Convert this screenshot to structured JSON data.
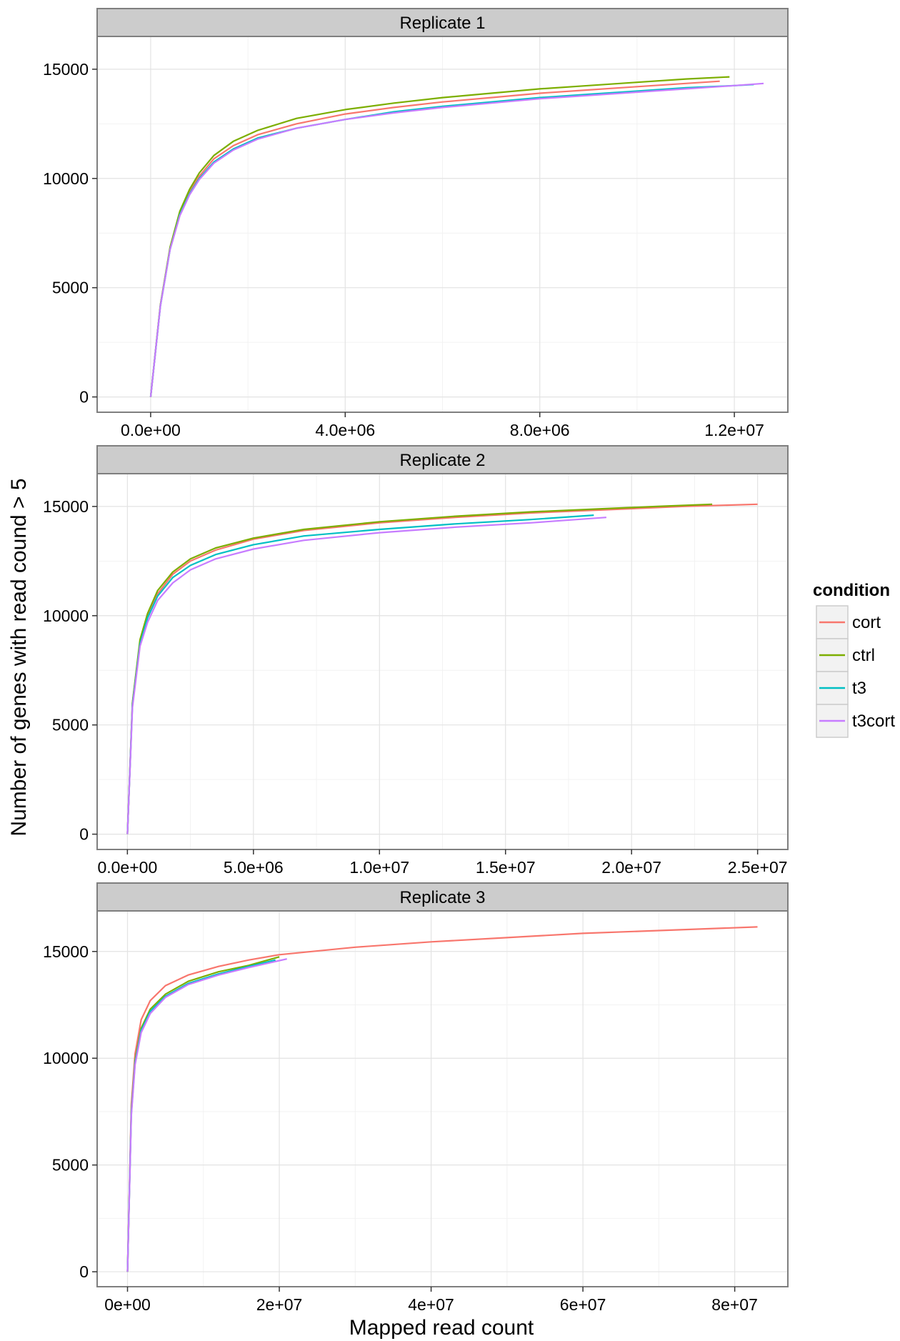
{
  "figure": {
    "xlabel": "Mapped read count",
    "ylabel": "Number of genes with read cound > 5"
  },
  "legend": {
    "title": "condition",
    "items": [
      {
        "label": "cort",
        "color": "#F8766D"
      },
      {
        "label": "ctrl",
        "color": "#7CAE00"
      },
      {
        "label": "t3",
        "color": "#00BFC4"
      },
      {
        "label": "t3cort",
        "color": "#C77CFF"
      }
    ]
  },
  "chart_data": [
    {
      "type": "line",
      "title": "Replicate 1",
      "xlim": [
        -1100000,
        13100000
      ],
      "ylim": [
        -700,
        16500
      ],
      "x_ticks": [
        0,
        4000000,
        8000000,
        12000000
      ],
      "x_tick_labels": [
        "0.0e+00",
        "4.0e+06",
        "8.0e+06",
        "1.2e+07"
      ],
      "y_ticks": [
        0,
        5000,
        10000,
        15000
      ],
      "y_tick_labels": [
        "0",
        "5000",
        "10000",
        "15000"
      ],
      "grid": true,
      "series": [
        {
          "name": "cort",
          "color": "#F8766D",
          "points": [
            [
              0,
              0
            ],
            [
              200000,
              4200
            ],
            [
              400000,
              6800
            ],
            [
              600000,
              8400
            ],
            [
              800000,
              9400
            ],
            [
              1000000,
              10100
            ],
            [
              1300000,
              10900
            ],
            [
              1700000,
              11500
            ],
            [
              2200000,
              12000
            ],
            [
              3000000,
              12500
            ],
            [
              4000000,
              12950
            ],
            [
              5000000,
              13250
            ],
            [
              6000000,
              13500
            ],
            [
              7000000,
              13700
            ],
            [
              8000000,
              13900
            ],
            [
              9000000,
              14050
            ],
            [
              10000000,
              14200
            ],
            [
              11000000,
              14350
            ],
            [
              11700000,
              14450
            ]
          ]
        },
        {
          "name": "ctrl",
          "color": "#7CAE00",
          "points": [
            [
              0,
              0
            ],
            [
              200000,
              4200
            ],
            [
              400000,
              6850
            ],
            [
              600000,
              8500
            ],
            [
              800000,
              9500
            ],
            [
              1000000,
              10250
            ],
            [
              1300000,
              11050
            ],
            [
              1700000,
              11700
            ],
            [
              2200000,
              12200
            ],
            [
              3000000,
              12750
            ],
            [
              4000000,
              13150
            ],
            [
              5000000,
              13450
            ],
            [
              6000000,
              13700
            ],
            [
              7000000,
              13900
            ],
            [
              8000000,
              14100
            ],
            [
              9000000,
              14250
            ],
            [
              10000000,
              14400
            ],
            [
              11000000,
              14550
            ],
            [
              11900000,
              14650
            ]
          ]
        },
        {
          "name": "t3",
          "color": "#00BFC4",
          "points": [
            [
              0,
              0
            ],
            [
              200000,
              4150
            ],
            [
              400000,
              6750
            ],
            [
              600000,
              8350
            ],
            [
              800000,
              9300
            ],
            [
              1000000,
              10000
            ],
            [
              1300000,
              10750
            ],
            [
              1700000,
              11350
            ],
            [
              2200000,
              11850
            ],
            [
              3000000,
              12300
            ],
            [
              4000000,
              12700
            ],
            [
              5000000,
              13050
            ],
            [
              6000000,
              13300
            ],
            [
              7000000,
              13500
            ],
            [
              8000000,
              13700
            ],
            [
              9000000,
              13850
            ],
            [
              10000000,
              14000
            ],
            [
              11000000,
              14150
            ],
            [
              12000000,
              14250
            ],
            [
              12400000,
              14300
            ]
          ]
        },
        {
          "name": "t3cort",
          "color": "#C77CFF",
          "points": [
            [
              0,
              0
            ],
            [
              200000,
              4150
            ],
            [
              400000,
              6750
            ],
            [
              600000,
              8300
            ],
            [
              800000,
              9250
            ],
            [
              1000000,
              9950
            ],
            [
              1300000,
              10700
            ],
            [
              1700000,
              11300
            ],
            [
              2200000,
              11800
            ],
            [
              3000000,
              12300
            ],
            [
              4000000,
              12700
            ],
            [
              5000000,
              13000
            ],
            [
              6000000,
              13250
            ],
            [
              7000000,
              13450
            ],
            [
              8000000,
              13650
            ],
            [
              9000000,
              13800
            ],
            [
              10000000,
              13950
            ],
            [
              11000000,
              14100
            ],
            [
              12000000,
              14250
            ],
            [
              12600000,
              14350
            ]
          ]
        }
      ]
    },
    {
      "type": "line",
      "title": "Replicate 2",
      "xlim": [
        -1200000,
        26200000
      ],
      "ylim": [
        -700,
        16500
      ],
      "x_ticks": [
        0,
        5000000,
        10000000,
        15000000,
        20000000,
        25000000
      ],
      "x_tick_labels": [
        "0.0e+00",
        "5.0e+06",
        "1.0e+07",
        "1.5e+07",
        "2.0e+07",
        "2.5e+07"
      ],
      "y_ticks": [
        0,
        5000,
        10000,
        15000
      ],
      "y_tick_labels": [
        "0",
        "5000",
        "10000",
        "15000"
      ],
      "grid": true,
      "series": [
        {
          "name": "cort",
          "color": "#F8766D",
          "points": [
            [
              0,
              0
            ],
            [
              200000,
              6000
            ],
            [
              500000,
              8800
            ],
            [
              800000,
              10000
            ],
            [
              1200000,
              11000
            ],
            [
              1800000,
              11900
            ],
            [
              2500000,
              12500
            ],
            [
              3500000,
              13000
            ],
            [
              5000000,
              13500
            ],
            [
              7000000,
              13900
            ],
            [
              10000000,
              14250
            ],
            [
              13000000,
              14500
            ],
            [
              16000000,
              14700
            ],
            [
              19000000,
              14850
            ],
            [
              22000000,
              15000
            ],
            [
              25000000,
              15100
            ]
          ]
        },
        {
          "name": "ctrl",
          "color": "#7CAE00",
          "points": [
            [
              0,
              0
            ],
            [
              200000,
              6000
            ],
            [
              500000,
              8900
            ],
            [
              800000,
              10100
            ],
            [
              1200000,
              11150
            ],
            [
              1800000,
              12000
            ],
            [
              2500000,
              12600
            ],
            [
              3500000,
              13100
            ],
            [
              5000000,
              13550
            ],
            [
              7000000,
              13950
            ],
            [
              10000000,
              14300
            ],
            [
              13000000,
              14550
            ],
            [
              16000000,
              14750
            ],
            [
              19000000,
              14900
            ],
            [
              21000000,
              15000
            ],
            [
              23200000,
              15100
            ]
          ]
        },
        {
          "name": "t3",
          "color": "#00BFC4",
          "points": [
            [
              0,
              0
            ],
            [
              200000,
              5900
            ],
            [
              500000,
              8700
            ],
            [
              800000,
              9900
            ],
            [
              1200000,
              10900
            ],
            [
              1800000,
              11750
            ],
            [
              2500000,
              12300
            ],
            [
              3500000,
              12800
            ],
            [
              5000000,
              13250
            ],
            [
              7000000,
              13650
            ],
            [
              10000000,
              13950
            ],
            [
              13000000,
              14200
            ],
            [
              16000000,
              14400
            ],
            [
              18500000,
              14600
            ]
          ]
        },
        {
          "name": "t3cort",
          "color": "#C77CFF",
          "points": [
            [
              0,
              0
            ],
            [
              200000,
              5800
            ],
            [
              500000,
              8600
            ],
            [
              800000,
              9700
            ],
            [
              1200000,
              10700
            ],
            [
              1800000,
              11500
            ],
            [
              2500000,
              12100
            ],
            [
              3500000,
              12600
            ],
            [
              5000000,
              13050
            ],
            [
              7000000,
              13450
            ],
            [
              10000000,
              13800
            ],
            [
              13000000,
              14050
            ],
            [
              16000000,
              14250
            ],
            [
              19000000,
              14500
            ]
          ]
        }
      ]
    },
    {
      "type": "line",
      "title": "Replicate 3",
      "xlim": [
        -4000000,
        87000000
      ],
      "ylim": [
        -700,
        16900
      ],
      "x_ticks": [
        0,
        20000000,
        40000000,
        60000000,
        80000000
      ],
      "x_tick_labels": [
        "0e+00",
        "2e+07",
        "4e+07",
        "6e+07",
        "8e+07"
      ],
      "y_ticks": [
        0,
        5000,
        10000,
        15000
      ],
      "y_tick_labels": [
        "0",
        "5000",
        "10000",
        "15000"
      ],
      "grid": true,
      "series": [
        {
          "name": "cort",
          "color": "#F8766D",
          "points": [
            [
              0,
              0
            ],
            [
              500000,
              7800
            ],
            [
              1000000,
              10200
            ],
            [
              1800000,
              11800
            ],
            [
              3000000,
              12700
            ],
            [
              5000000,
              13400
            ],
            [
              8000000,
              13900
            ],
            [
              12000000,
              14300
            ],
            [
              16000000,
              14600
            ],
            [
              20000000,
              14850
            ],
            [
              30000000,
              15200
            ],
            [
              40000000,
              15450
            ],
            [
              50000000,
              15650
            ],
            [
              60000000,
              15850
            ],
            [
              70000000,
              15980
            ],
            [
              83000000,
              16150
            ]
          ]
        },
        {
          "name": "ctrl",
          "color": "#7CAE00",
          "points": [
            [
              0,
              0
            ],
            [
              500000,
              7500
            ],
            [
              1000000,
              9900
            ],
            [
              1800000,
              11400
            ],
            [
              3000000,
              12300
            ],
            [
              5000000,
              13000
            ],
            [
              8000000,
              13600
            ],
            [
              12000000,
              14050
            ],
            [
              16000000,
              14350
            ],
            [
              20000000,
              14750
            ]
          ]
        },
        {
          "name": "t3",
          "color": "#00BFC4",
          "points": [
            [
              0,
              0
            ],
            [
              500000,
              7400
            ],
            [
              1000000,
              9800
            ],
            [
              1800000,
              11300
            ],
            [
              3000000,
              12200
            ],
            [
              5000000,
              12900
            ],
            [
              8000000,
              13500
            ],
            [
              12000000,
              13950
            ],
            [
              16000000,
              14300
            ],
            [
              19500000,
              14600
            ]
          ]
        },
        {
          "name": "t3cort",
          "color": "#C77CFF",
          "points": [
            [
              0,
              0
            ],
            [
              500000,
              7300
            ],
            [
              1000000,
              9700
            ],
            [
              1800000,
              11200
            ],
            [
              3000000,
              12100
            ],
            [
              5000000,
              12850
            ],
            [
              8000000,
              13450
            ],
            [
              12000000,
              13900
            ],
            [
              16000000,
              14250
            ],
            [
              21000000,
              14650
            ]
          ]
        }
      ]
    }
  ]
}
